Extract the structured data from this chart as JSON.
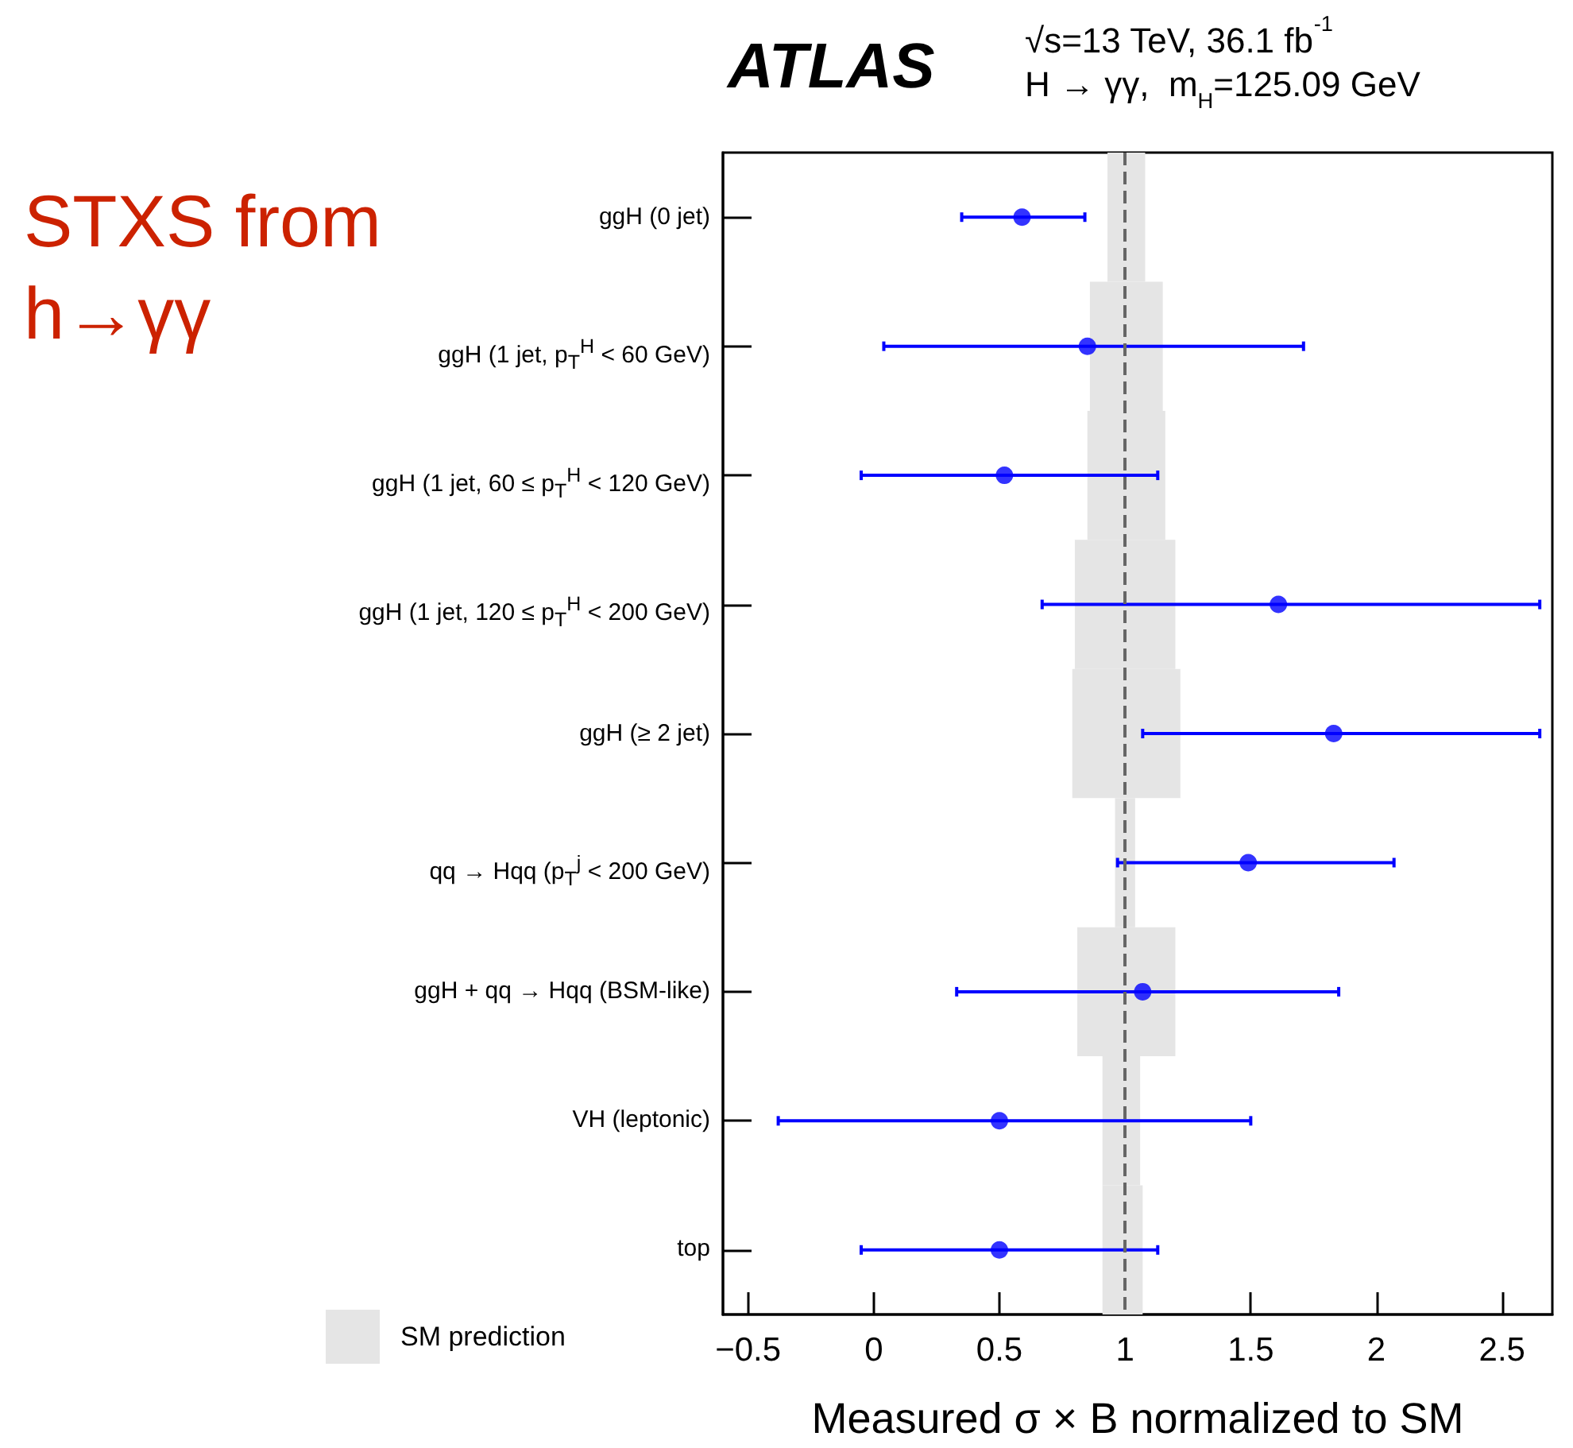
{
  "chart_data": {
    "type": "scatter",
    "orientation": "horizontal",
    "title": "STXS from h→γγ",
    "xlabel": "Measured σ × B normalized to SM",
    "annotations": [
      "ATLAS",
      "√s=13 TeV, 36.1 fb$^{-1}$",
      "H → γγ,  m$_{H}$=125.09 GeV"
    ],
    "categories": [
      "ggH (0 jet)",
      "ggH (1 jet, p$_{T}$$^{H}$ < 60 GeV)",
      "ggH (1 jet, 60 ≤ p$_{T}$$^{H}$ < 120 GeV)",
      "ggH (1 jet, 120 ≤ p$_{T}$$^{H}$ < 200 GeV)",
      "ggH (≥ 2 jet)",
      "qq → Hqq (p$_{T}$$^{j}$ < 200 GeV)",
      "ggH + qq → Hqq (BSM-like)",
      "VH (leptonic)",
      "top"
    ],
    "series": [
      {
        "type": "bar",
        "name": "SM prediction",
        "color": "#e5e5e5",
        "base": [
          0.93,
          0.86,
          0.85,
          0.8,
          0.79,
          0.96,
          0.81,
          0.91,
          0.91
        ],
        "values": [
          0.15,
          0.29,
          0.31,
          0.4,
          0.43,
          0.08,
          0.39,
          0.15,
          0.16
        ]
      },
      {
        "color": "#0000ff",
        "values": [
          0.59,
          0.85,
          0.52,
          1.61,
          1.83,
          1.49,
          1.07,
          0.5,
          0.5
        ],
        "errors": [
          [
            0.35,
            0.84
          ],
          [
            0.04,
            1.71
          ],
          [
            -0.05,
            1.13
          ],
          [
            0.67,
            2.65
          ],
          [
            1.07,
            2.65
          ],
          [
            0.97,
            2.07
          ],
          [
            0.33,
            1.85
          ],
          [
            -0.38,
            1.5
          ],
          [
            -0.05,
            1.13
          ]
        ]
      }
    ],
    "xlim": [
      -0.6,
      2.7
    ],
    "xticks": [
      {
        "value": -0.5,
        "label": "−0.5"
      },
      0,
      0.5,
      1,
      1.5,
      2,
      2.5
    ],
    "ref_lines": [
      {
        "axis": "x",
        "value": 1,
        "color": "#666666",
        "line_style": "dashed"
      }
    ],
    "marker": "circle",
    "legend": "bottom left",
    "grid": false
  }
}
